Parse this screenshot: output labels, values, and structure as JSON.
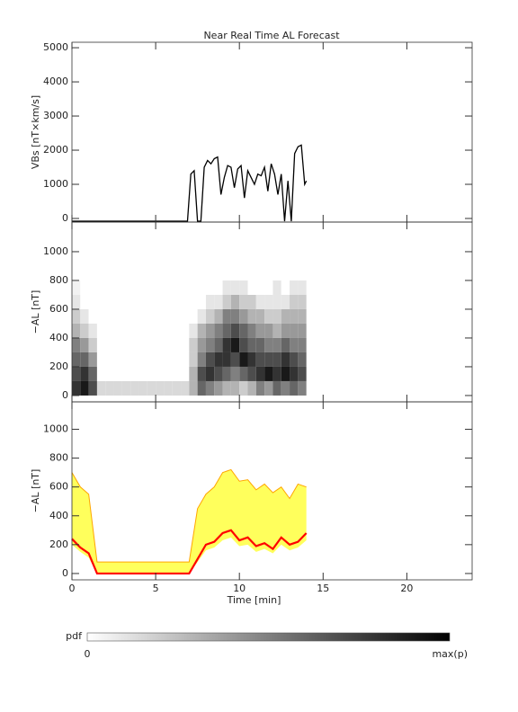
{
  "title": "Near Real Time AL Forecast",
  "chart_data": [
    {
      "type": "line",
      "ylabel": "VBs [nT×km/s]",
      "color": "#000000",
      "xlim": [
        0,
        23.9
      ],
      "xticks": [
        0,
        5,
        10,
        15,
        20
      ],
      "ylim": [
        -105,
        5160
      ],
      "yticks": [
        0,
        1000,
        2000,
        3000,
        4000,
        5000
      ],
      "x": [
        0,
        6.9,
        7.1,
        7.3,
        7.5,
        7.7,
        7.9,
        8.1,
        8.3,
        8.5,
        8.7,
        8.9,
        9.1,
        9.3,
        9.5,
        9.7,
        9.9,
        10.1,
        10.3,
        10.5,
        10.7,
        10.9,
        11.1,
        11.3,
        11.5,
        11.7,
        11.9,
        12.1,
        12.3,
        12.5,
        12.7,
        12.9,
        13.1,
        13.3,
        13.5,
        13.7,
        13.9,
        14.0
      ],
      "values": [
        -80,
        -80,
        1300,
        1400,
        -80,
        -80,
        1500,
        1700,
        1600,
        1750,
        1800,
        700,
        1200,
        1550,
        1500,
        900,
        1450,
        1550,
        600,
        1400,
        1200,
        1000,
        1300,
        1250,
        1500,
        800,
        1600,
        1300,
        700,
        1300,
        -80,
        1100,
        -80,
        1900,
        2100,
        2150,
        1000,
        1100
      ]
    },
    {
      "type": "heatmap",
      "ylabel": "−AL [nT]",
      "xlim": [
        0,
        23.9
      ],
      "xticks": [
        0,
        5,
        10,
        15,
        20
      ],
      "ylim": [
        -44,
        1206
      ],
      "yticks": [
        0,
        200,
        400,
        600,
        800,
        1000
      ],
      "x_edges": [
        0,
        0.5,
        1,
        1.5,
        2,
        2.5,
        3,
        3.5,
        4,
        4.5,
        5,
        5.5,
        6,
        6.5,
        7,
        7.5,
        8,
        8.5,
        9,
        9.5,
        10,
        10.5,
        11,
        11.5,
        12,
        12.5,
        13,
        13.5,
        14
      ],
      "y_edges": [
        0,
        100,
        200,
        300,
        400,
        500,
        600,
        700,
        800
      ],
      "z": [
        [
          0.8,
          0.7,
          0.6,
          0.5,
          0.3,
          0.2,
          0.1,
          0.05
        ],
        [
          0.9,
          0.8,
          0.6,
          0.4,
          0.2,
          0.1,
          0,
          0
        ],
        [
          0.7,
          0.6,
          0.4,
          0.2,
          0.1,
          0,
          0,
          0
        ],
        [
          0.15,
          0,
          0,
          0,
          0,
          0,
          0,
          0
        ],
        [
          0.15,
          0,
          0,
          0,
          0,
          0,
          0,
          0
        ],
        [
          0.15,
          0,
          0,
          0,
          0,
          0,
          0,
          0
        ],
        [
          0.15,
          0,
          0,
          0,
          0,
          0,
          0,
          0
        ],
        [
          0.15,
          0,
          0,
          0,
          0,
          0,
          0,
          0
        ],
        [
          0.15,
          0,
          0,
          0,
          0,
          0,
          0,
          0
        ],
        [
          0.15,
          0,
          0,
          0,
          0,
          0,
          0,
          0
        ],
        [
          0.15,
          0,
          0,
          0,
          0,
          0,
          0,
          0
        ],
        [
          0.15,
          0,
          0,
          0,
          0,
          0,
          0,
          0
        ],
        [
          0.15,
          0,
          0,
          0,
          0,
          0,
          0,
          0
        ],
        [
          0.15,
          0,
          0,
          0,
          0,
          0,
          0,
          0
        ],
        [
          0.3,
          0.3,
          0.2,
          0.2,
          0.1,
          0,
          0,
          0
        ],
        [
          0.6,
          0.7,
          0.5,
          0.4,
          0.3,
          0.1,
          0,
          0
        ],
        [
          0.5,
          0.8,
          0.7,
          0.5,
          0.4,
          0.2,
          0.1,
          0
        ],
        [
          0.4,
          0.7,
          0.8,
          0.6,
          0.5,
          0.3,
          0.1,
          0
        ],
        [
          0.3,
          0.6,
          0.8,
          0.8,
          0.6,
          0.5,
          0.2,
          0.1
        ],
        [
          0.3,
          0.5,
          0.7,
          0.9,
          0.7,
          0.5,
          0.3,
          0.1
        ],
        [
          0.2,
          0.6,
          0.9,
          0.7,
          0.6,
          0.4,
          0.2,
          0.1
        ],
        [
          0.3,
          0.7,
          0.8,
          0.6,
          0.5,
          0.3,
          0.2,
          0
        ],
        [
          0.5,
          0.8,
          0.7,
          0.6,
          0.4,
          0.3,
          0.1,
          0
        ],
        [
          0.4,
          0.9,
          0.7,
          0.5,
          0.4,
          0.2,
          0.1,
          0
        ],
        [
          0.6,
          0.8,
          0.7,
          0.5,
          0.3,
          0.2,
          0.1,
          0.1
        ],
        [
          0.5,
          0.9,
          0.8,
          0.6,
          0.4,
          0.3,
          0.1,
          0
        ],
        [
          0.6,
          0.8,
          0.7,
          0.5,
          0.4,
          0.3,
          0.2,
          0.1
        ],
        [
          0.5,
          0.7,
          0.6,
          0.5,
          0.4,
          0.3,
          0.2,
          0.1
        ]
      ]
    },
    {
      "type": "band",
      "ylabel": "−AL [nT]",
      "xlabel": "Time [min]",
      "color": "#ff0000",
      "upper_color": "#ffa500",
      "fill_color": "#ffff33",
      "xlim": [
        0,
        23.9
      ],
      "xticks": [
        0,
        5,
        10,
        15,
        20
      ],
      "ylim": [
        -44,
        1190
      ],
      "yticks": [
        0,
        200,
        400,
        600,
        800,
        1000
      ],
      "x": [
        0,
        0.5,
        1,
        1.5,
        2,
        2.5,
        3,
        3.5,
        4,
        4.5,
        5,
        5.5,
        6,
        6.5,
        7,
        7.5,
        8,
        8.5,
        9,
        9.5,
        10,
        10.5,
        11,
        11.5,
        12,
        12.5,
        13,
        13.5,
        14
      ],
      "upper": [
        700,
        600,
        550,
        80,
        80,
        80,
        80,
        80,
        80,
        80,
        80,
        80,
        80,
        80,
        80,
        450,
        550,
        600,
        700,
        720,
        640,
        650,
        580,
        620,
        560,
        600,
        520,
        620,
        600
      ],
      "lower": [
        200,
        150,
        110,
        0,
        0,
        0,
        0,
        0,
        0,
        0,
        0,
        0,
        0,
        0,
        0,
        80,
        160,
        180,
        230,
        250,
        190,
        200,
        150,
        170,
        140,
        200,
        160,
        180,
        230
      ],
      "values": [
        240,
        180,
        140,
        0,
        0,
        0,
        0,
        0,
        0,
        0,
        0,
        0,
        0,
        0,
        0,
        100,
        200,
        220,
        280,
        300,
        230,
        250,
        190,
        210,
        170,
        250,
        200,
        220,
        280
      ]
    }
  ],
  "colorbar": {
    "label": "pdf",
    "min_label": "0",
    "max_label": "max(p)"
  }
}
